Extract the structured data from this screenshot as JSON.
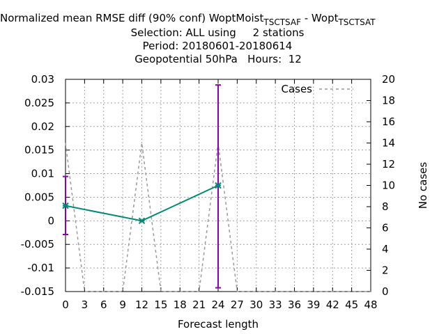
{
  "title": {
    "line1_prefix": "Normalized mean RMSE diff (90% conf) WoptMoist",
    "line1_sub_a": "TSCTSAF",
    "line1_middle": " - Wopt",
    "line1_sub_b": "TSCTSAT",
    "line2": "Selection: ALL using     2 stations",
    "line3": "Period: 20180601-20180614",
    "line4": "Geopotential 50hPa   Hours:  12"
  },
  "chart_data": {
    "type": "line",
    "xlabel": "Forecast length",
    "ylabel": "",
    "y2label": "No cases",
    "xlim": [
      0,
      48
    ],
    "ylim": [
      -0.015,
      0.03
    ],
    "y2lim": [
      0,
      20
    ],
    "x_ticks": [
      0,
      3,
      6,
      9,
      12,
      15,
      18,
      21,
      24,
      27,
      30,
      33,
      36,
      39,
      42,
      45,
      48
    ],
    "y_ticks": [
      0.03,
      0.025,
      0.02,
      0.015,
      0.01,
      0.005,
      0,
      -0.005,
      -0.01,
      -0.015
    ],
    "y_tick_labels": [
      "0.03",
      "0.025",
      "0.02",
      "0.015",
      "0.01",
      "0.005",
      "0",
      "-0.005",
      "-0.01",
      "-0.015"
    ],
    "y2_ticks": [
      20,
      18,
      16,
      14,
      12,
      10,
      8,
      6,
      4,
      2,
      0
    ],
    "grid": true,
    "legend": {
      "position": "top-right",
      "entries": [
        "Cases"
      ]
    },
    "series": [
      {
        "name": "",
        "color": "#008b73",
        "x": [
          0,
          12,
          24
        ],
        "y": [
          0.0032,
          0.0,
          0.0075
        ],
        "error_low": [
          -0.0029,
          0.0,
          -0.0142
        ],
        "error_high": [
          0.0094,
          0.0,
          0.0288
        ],
        "error_color": "#8b00b4"
      },
      {
        "name": "Cases",
        "axis": "y2",
        "color": "#999999",
        "dash": true,
        "x": [
          0,
          3,
          9,
          12,
          15,
          21,
          24,
          27,
          48
        ],
        "y": [
          14,
          0,
          0,
          14,
          0,
          0,
          14,
          0,
          0
        ]
      }
    ]
  }
}
